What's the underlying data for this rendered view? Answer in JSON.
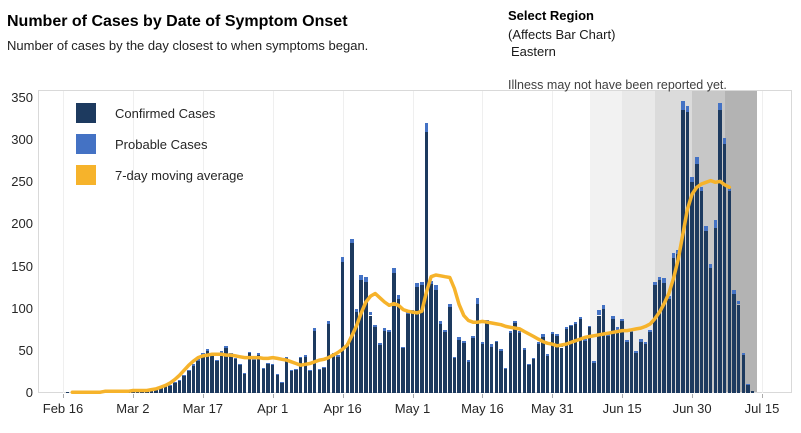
{
  "header": {
    "title": "Number of Cases by Date of Symptom Onset",
    "subtitle": "Number of cases by the day closest to when symptoms began."
  },
  "region_selector": {
    "label": "Select Region",
    "sublabel": "(Affects Bar Chart)",
    "value": "Eastern"
  },
  "annotation": "Illness may not have been reported yet.",
  "legend": [
    {
      "label": "Confirmed Cases",
      "color": "#1d3a5f"
    },
    {
      "label": "Probable Cases",
      "color": "#4472c4"
    },
    {
      "label": "7-day moving average",
      "color": "#f6b32b"
    }
  ],
  "colors": {
    "confirmed": "#1d3a5f",
    "probable": "#4472c4",
    "moving_average": "#f6b32b",
    "plot_border": "#d9d9d9"
  },
  "chart_data": {
    "type": "bar",
    "title": "Number of Cases by Date of Symptom Onset",
    "xlabel": "",
    "ylabel": "",
    "ylim": [
      0,
      350
    ],
    "y_ticks": [
      0,
      50,
      100,
      150,
      200,
      250,
      300,
      350
    ],
    "x_tick_labels": [
      "Feb 16",
      "Mar 2",
      "Mar 17",
      "Apr 1",
      "Apr 16",
      "May 1",
      "May 16",
      "May 31",
      "Jun 15",
      "Jun 30",
      "Jul 15"
    ],
    "grid": false,
    "legend_position": "top-left",
    "dates": [
      "Feb 16",
      "Feb 17",
      "Feb 18",
      "Feb 19",
      "Feb 20",
      "Feb 21",
      "Feb 22",
      "Feb 23",
      "Feb 24",
      "Feb 25",
      "Feb 26",
      "Feb 27",
      "Feb 28",
      "Feb 29",
      "Mar 1",
      "Mar 2",
      "Mar 3",
      "Mar 4",
      "Mar 5",
      "Mar 6",
      "Mar 7",
      "Mar 8",
      "Mar 9",
      "Mar 10",
      "Mar 11",
      "Mar 12",
      "Mar 13",
      "Mar 14",
      "Mar 15",
      "Mar 16",
      "Mar 17",
      "Mar 18",
      "Mar 19",
      "Mar 20",
      "Mar 21",
      "Mar 22",
      "Mar 23",
      "Mar 24",
      "Mar 25",
      "Mar 26",
      "Mar 27",
      "Mar 28",
      "Mar 29",
      "Mar 30",
      "Mar 31",
      "Apr 1",
      "Apr 2",
      "Apr 3",
      "Apr 4",
      "Apr 5",
      "Apr 6",
      "Apr 7",
      "Apr 8",
      "Apr 9",
      "Apr 10",
      "Apr 11",
      "Apr 12",
      "Apr 13",
      "Apr 14",
      "Apr 15",
      "Apr 16",
      "Apr 17",
      "Apr 18",
      "Apr 19",
      "Apr 20",
      "Apr 21",
      "Apr 22",
      "Apr 23",
      "Apr 24",
      "Apr 25",
      "Apr 26",
      "Apr 27",
      "Apr 28",
      "Apr 29",
      "Apr 30",
      "May 1",
      "May 2",
      "May 3",
      "May 4",
      "May 5",
      "May 6",
      "May 7",
      "May 8",
      "May 9",
      "May 10",
      "May 11",
      "May 12",
      "May 13",
      "May 14",
      "May 15",
      "May 16",
      "May 17",
      "May 18",
      "May 19",
      "May 20",
      "May 21",
      "May 22",
      "May 23",
      "May 24",
      "May 25",
      "May 26",
      "May 27",
      "May 28",
      "May 29",
      "May 30",
      "May 31",
      "Jun 1",
      "Jun 2",
      "Jun 3",
      "Jun 4",
      "Jun 5",
      "Jun 6",
      "Jun 7",
      "Jun 8",
      "Jun 9",
      "Jun 10",
      "Jun 11",
      "Jun 12",
      "Jun 13",
      "Jun 14",
      "Jun 15",
      "Jun 16",
      "Jun 17",
      "Jun 18",
      "Jun 19",
      "Jun 20",
      "Jun 21",
      "Jun 22",
      "Jun 23",
      "Jun 24",
      "Jun 25",
      "Jun 26",
      "Jun 27",
      "Jun 28",
      "Jun 29",
      "Jun 30",
      "Jul 1",
      "Jul 2",
      "Jul 3",
      "Jul 4",
      "Jul 5",
      "Jul 6",
      "Jul 7",
      "Jul 8",
      "Jul 9",
      "Jul 10",
      "Jul 11",
      "Jul 12",
      "Jul 13",
      "Jul 14",
      "Jul 15"
    ],
    "series": [
      {
        "name": "Confirmed Cases",
        "type": "bar",
        "color": "#1d3a5f",
        "values": [
          0,
          1,
          1,
          1,
          2,
          1,
          1,
          2,
          1,
          2,
          2,
          2,
          3,
          2,
          3,
          4,
          3,
          4,
          4,
          5,
          5,
          6,
          8,
          9,
          12,
          15,
          20,
          26,
          32,
          38,
          45,
          50,
          44,
          38,
          48,
          53,
          46,
          40,
          34,
          23,
          47,
          39,
          45,
          29,
          35,
          33,
          22,
          12,
          41,
          26,
          28,
          41,
          43,
          26,
          74,
          28,
          30,
          82,
          45,
          43,
          155,
          57,
          178,
          96,
          134,
          132,
          92,
          78,
          57,
          74,
          72,
          142,
          111,
          53,
          94,
          95,
          126,
          128,
          310,
          129,
          122,
          82,
          72,
          102,
          41,
          63,
          59,
          37,
          65,
          106,
          58,
          84,
          55,
          60,
          50,
          29,
          71,
          83,
          71,
          51,
          33,
          40,
          58,
          66,
          44,
          70,
          68,
          54,
          76,
          79,
          82,
          88,
          62,
          78,
          36,
          92,
          100,
          68,
          88,
          75,
          85,
          60,
          72,
          48,
          61,
          58,
          72,
          128,
          134,
          130,
          112,
          160,
          165,
          336,
          333,
          250,
          272,
          240,
          192,
          148,
          196,
          336,
          295,
          240,
          118,
          105,
          45,
          10,
          3,
          0,
          0
        ]
      },
      {
        "name": "Probable Cases",
        "type": "bar",
        "color": "#4472c4",
        "values": [
          0,
          0,
          0,
          0,
          0,
          0,
          0,
          0,
          0,
          0,
          0,
          0,
          0,
          0,
          0,
          0,
          0,
          0,
          0,
          0,
          0,
          0,
          0,
          1,
          1,
          1,
          1,
          1,
          2,
          2,
          2,
          2,
          2,
          1,
          2,
          3,
          2,
          1,
          1,
          1,
          2,
          2,
          2,
          1,
          1,
          2,
          1,
          1,
          2,
          1,
          1,
          2,
          2,
          1,
          3,
          1,
          1,
          3,
          2,
          2,
          7,
          2,
          5,
          4,
          6,
          6,
          4,
          3,
          2,
          3,
          3,
          6,
          5,
          2,
          4,
          3,
          4,
          4,
          10,
          4,
          6,
          3,
          3,
          4,
          2,
          3,
          3,
          2,
          3,
          7,
          2,
          3,
          3,
          2,
          2,
          1,
          3,
          3,
          3,
          2,
          1,
          2,
          2,
          4,
          2,
          2,
          2,
          2,
          2,
          2,
          2,
          2,
          2,
          2,
          2,
          6,
          4,
          3,
          4,
          3,
          3,
          3,
          3,
          2,
          3,
          2,
          3,
          4,
          4,
          7,
          3,
          6,
          5,
          10,
          8,
          6,
          8,
          5,
          6,
          5,
          9,
          8,
          8,
          5,
          4,
          4,
          2,
          1,
          0,
          0,
          0
        ]
      },
      {
        "name": "7-day moving average",
        "type": "line",
        "color": "#f6b32b",
        "values": [
          null,
          null,
          1,
          1,
          1,
          1,
          1,
          1,
          1,
          2,
          2,
          2,
          2,
          2,
          2,
          3,
          3,
          3,
          3,
          4,
          5,
          7,
          9,
          12,
          16,
          21,
          27,
          33,
          38,
          42,
          44,
          45,
          46,
          46,
          46,
          45,
          45,
          44,
          43,
          42,
          42,
          42,
          42,
          41,
          41,
          42,
          41,
          40,
          39,
          37,
          35,
          33,
          34,
          35,
          37,
          39,
          40,
          42,
          45,
          48,
          52,
          57,
          68,
          80,
          95,
          108,
          115,
          118,
          113,
          108,
          104,
          106,
          104,
          99,
          97,
          96,
          95,
          97,
          120,
          138,
          140,
          139,
          138,
          137,
          124,
          105,
          92,
          86,
          84,
          84,
          85,
          84,
          83,
          82,
          81,
          79,
          78,
          77,
          76,
          73,
          70,
          67,
          64,
          61,
          59,
          58,
          56,
          57,
          58,
          60,
          62,
          64,
          66,
          67,
          68,
          69,
          70,
          71,
          72,
          73,
          74,
          74,
          75,
          76,
          77,
          79,
          82,
          88,
          96,
          106,
          118,
          136,
          158,
          188,
          218,
          236,
          244,
          248,
          250,
          252,
          250,
          251,
          247,
          244,
          null,
          null,
          null,
          null,
          null,
          null,
          null
        ]
      }
    ],
    "shaded_bands": [
      {
        "from": "Jun 8",
        "to": "Jun 15",
        "color": "#f2f2f2"
      },
      {
        "from": "Jun 15",
        "to": "Jun 22",
        "color": "#e9e9e9"
      },
      {
        "from": "Jun 22",
        "to": "Jun 30",
        "color": "#dbdbdb"
      },
      {
        "from": "Jun 30",
        "to": "Jul 7",
        "color": "#c7c7c7"
      },
      {
        "from": "Jul 7",
        "to": "Jul 14",
        "color": "#b3b3b3"
      }
    ]
  }
}
